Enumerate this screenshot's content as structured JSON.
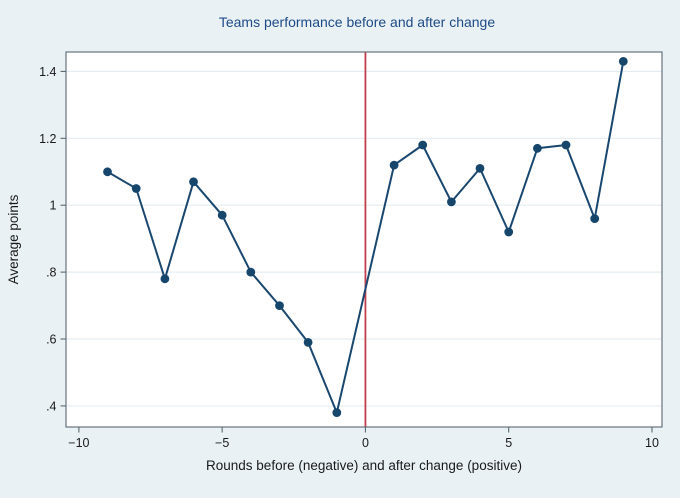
{
  "figure": {
    "background_color": "#e9f1f5",
    "plot_background_color": "#ffffff"
  },
  "chart_data": {
    "type": "line",
    "title": "Teams performance before and after change",
    "xlabel": "Rounds before (negative) and after change (positive)",
    "ylabel": "Average points",
    "x": [
      -9,
      -8,
      -7,
      -6,
      -5,
      -4,
      -3,
      -2,
      -1,
      1,
      2,
      3,
      4,
      5,
      6,
      7,
      8,
      9
    ],
    "values": [
      1.1,
      1.05,
      0.78,
      1.07,
      0.97,
      0.8,
      0.7,
      0.59,
      0.38,
      1.12,
      1.18,
      1.01,
      1.11,
      0.92,
      1.17,
      1.18,
      0.96,
      1.43
    ],
    "xlim": [
      -10.45,
      10.35
    ],
    "ylim": [
      0.337,
      1.458
    ],
    "xticks": {
      "values": [
        -10,
        -5,
        0,
        5,
        10
      ],
      "labels": [
        "−10",
        "−5",
        "0",
        "5",
        "10"
      ]
    },
    "yticks": {
      "values": [
        0.4,
        0.6,
        0.8,
        1.0,
        1.2,
        1.4
      ],
      "labels": [
        ".4",
        ".6",
        ".8",
        "1",
        "1.2",
        "1.4"
      ]
    },
    "vline": {
      "x": 0,
      "color": "#c13f4f"
    },
    "line_color": "#1a476f",
    "marker_color": "#17466d",
    "grid": true,
    "grid_color": "#e4edf3",
    "frame_color": "#5b6871",
    "legend_position": "none"
  }
}
